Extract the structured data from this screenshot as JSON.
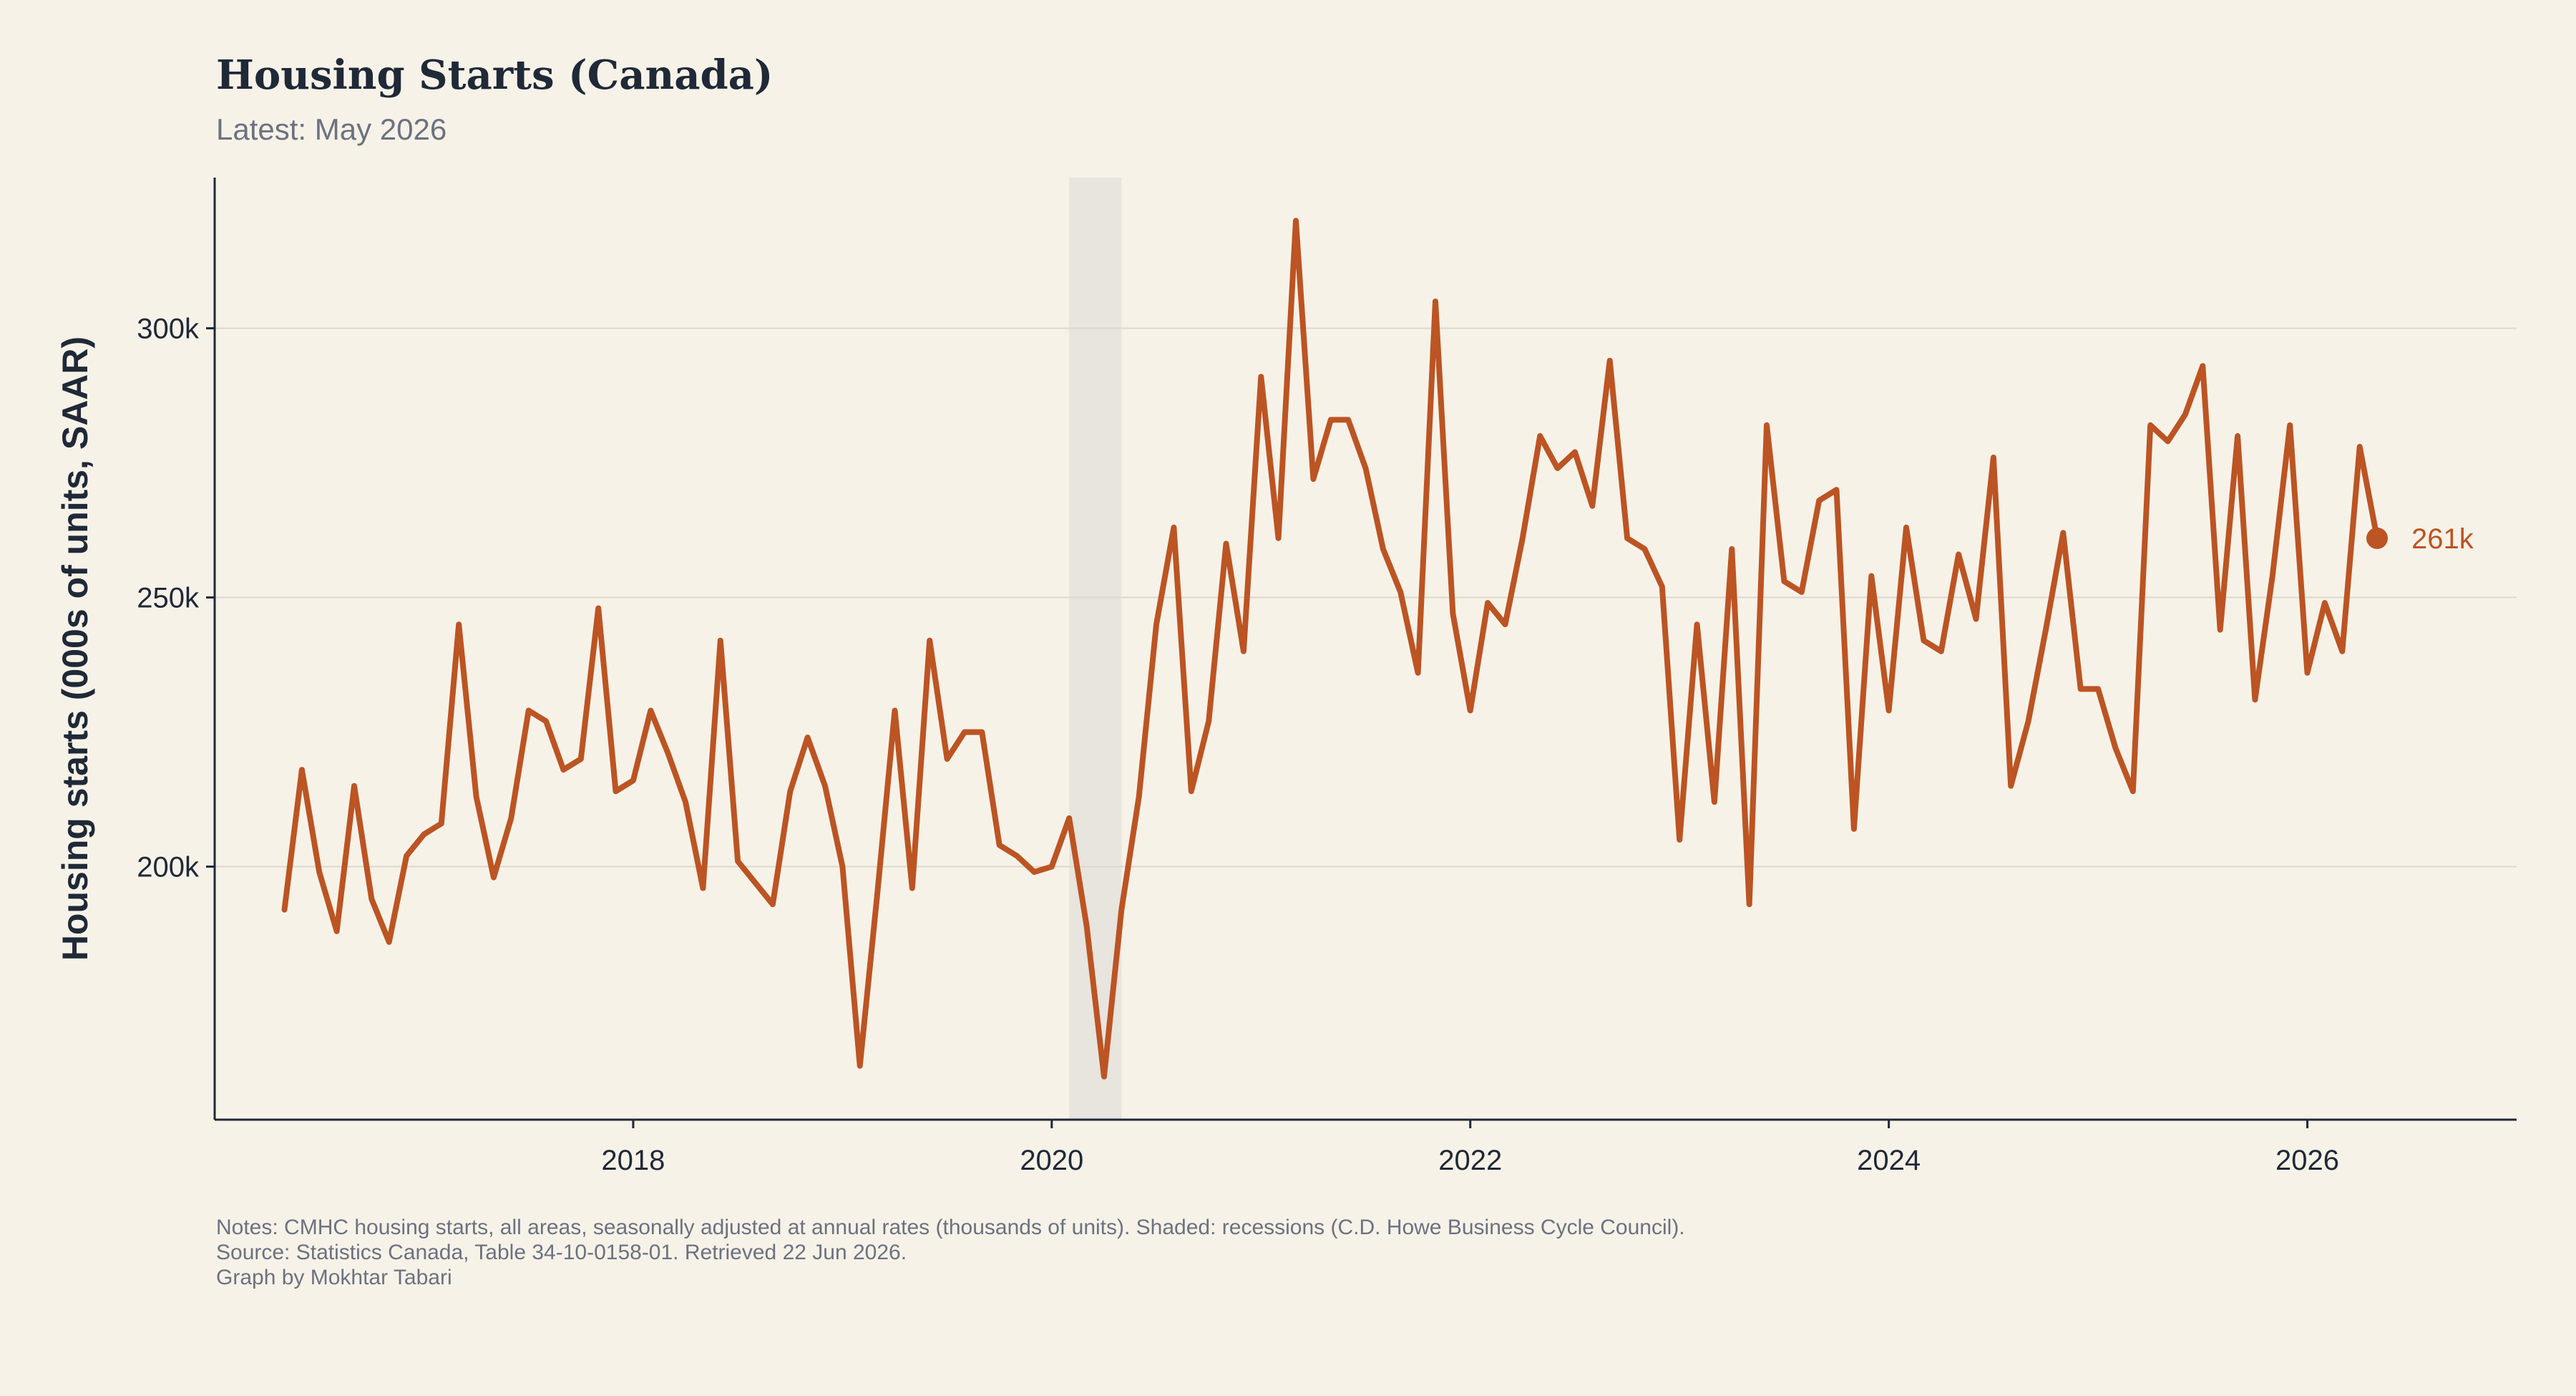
{
  "chart_data": {
    "type": "line",
    "title": "Housing Starts (Canada)",
    "subtitle": "Latest: May 2026",
    "xlabel": "",
    "ylabel": "Housing starts (000s of units, SAAR)",
    "x_start": "2016-05",
    "x_frequency": "monthly",
    "xlim": [
      "2016-01",
      "2027-01"
    ],
    "ylim": [
      153,
      328
    ],
    "x_ticks": [
      "2018",
      "2020",
      "2022",
      "2024",
      "2026"
    ],
    "y_ticks": [
      {
        "value": 200,
        "label": "200k"
      },
      {
        "value": 250,
        "label": "250k"
      },
      {
        "value": 300,
        "label": "300k"
      }
    ],
    "grid": "horizontal",
    "recessions": [
      {
        "start": "2020-02",
        "end": "2020-05"
      }
    ],
    "series": [
      {
        "color": "#bc5423",
        "values": [
          192,
          218,
          199,
          188,
          215,
          194,
          186,
          202,
          206,
          208,
          245,
          213,
          198,
          209,
          229,
          227,
          218,
          220,
          248,
          214,
          216,
          229,
          221,
          212,
          196,
          242,
          201,
          197,
          193,
          214,
          224,
          215,
          200,
          163,
          195,
          229,
          196,
          242,
          220,
          225,
          225,
          204,
          202,
          199,
          200,
          209,
          189,
          161,
          192,
          213,
          245,
          263,
          214,
          227,
          260,
          240,
          291,
          261,
          320,
          272,
          283,
          283,
          274,
          259,
          251,
          236,
          305,
          247,
          229,
          249,
          245,
          261,
          280,
          274,
          277,
          267,
          294,
          261,
          259,
          252,
          205,
          245,
          212,
          259,
          193,
          282,
          253,
          251,
          268,
          270,
          207,
          254,
          229,
          263,
          242,
          240,
          258,
          246,
          276,
          215,
          227,
          244,
          262,
          233,
          233,
          222,
          214,
          282,
          279,
          284,
          293,
          244,
          280,
          231,
          254,
          282,
          236,
          249,
          240,
          278,
          261
        ]
      }
    ],
    "end_label": "261k",
    "notes": [
      "Notes: CMHC housing starts, all areas, seasonally adjusted at annual rates (thousands of units). Shaded: recessions (C.D. Howe Business Cycle Council).",
      "Source: Statistics Canada, Table 34-10-0158-01. Retrieved 22 Jun 2026.",
      "Graph by Mokhtar Tabari"
    ]
  },
  "colors": {
    "background": "#f7f2e8",
    "line": "#bc5423",
    "recession": "#e8e4de",
    "grid": "#ddd8cc",
    "axis": "#1f2937"
  }
}
